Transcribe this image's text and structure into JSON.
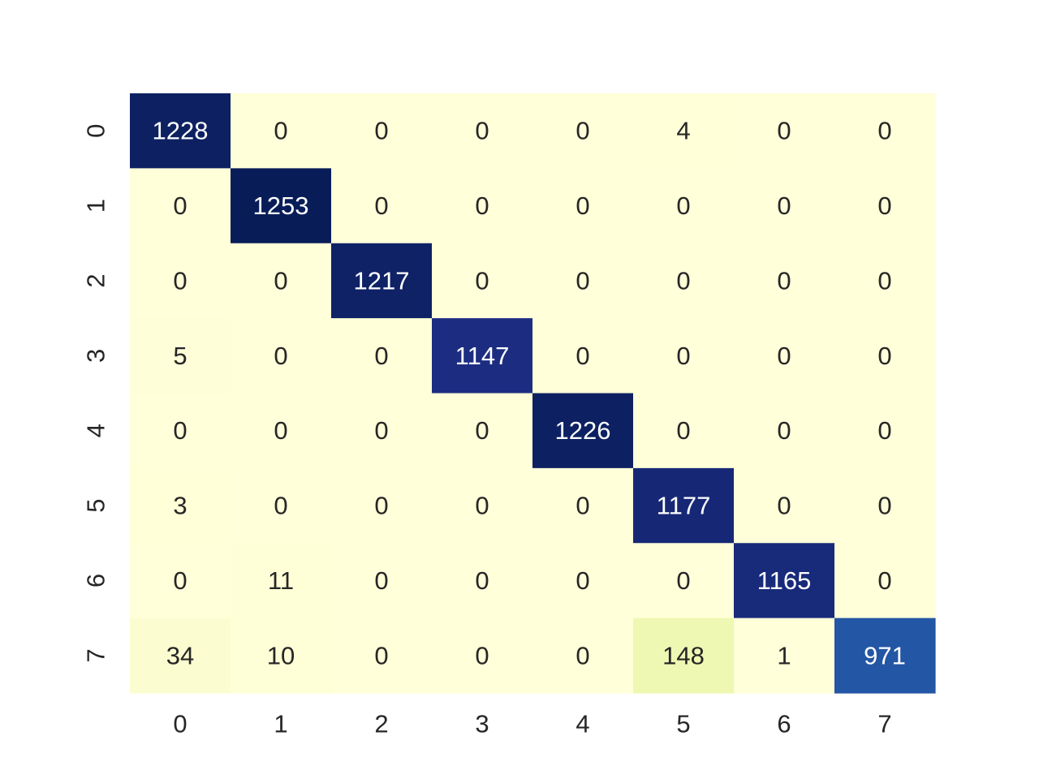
{
  "chart_data": {
    "type": "heatmap",
    "title": "",
    "xlabel": "",
    "ylabel": "",
    "x_tick_labels": [
      "0",
      "1",
      "2",
      "3",
      "4",
      "5",
      "6",
      "7"
    ],
    "y_tick_labels": [
      "0",
      "1",
      "2",
      "3",
      "4",
      "5",
      "6",
      "7"
    ],
    "values": [
      [
        1228,
        0,
        0,
        0,
        0,
        4,
        0,
        0
      ],
      [
        0,
        1253,
        0,
        0,
        0,
        0,
        0,
        0
      ],
      [
        0,
        0,
        1217,
        0,
        0,
        0,
        0,
        0
      ],
      [
        5,
        0,
        0,
        1147,
        0,
        0,
        0,
        0
      ],
      [
        0,
        0,
        0,
        0,
        1226,
        0,
        0,
        0
      ],
      [
        3,
        0,
        0,
        0,
        0,
        1177,
        0,
        0
      ],
      [
        0,
        11,
        0,
        0,
        0,
        0,
        1165,
        0
      ],
      [
        34,
        10,
        0,
        0,
        0,
        148,
        1,
        971
      ]
    ],
    "colormap": "YlGnBu",
    "colorbar": false,
    "annotations": true,
    "grid": false
  }
}
